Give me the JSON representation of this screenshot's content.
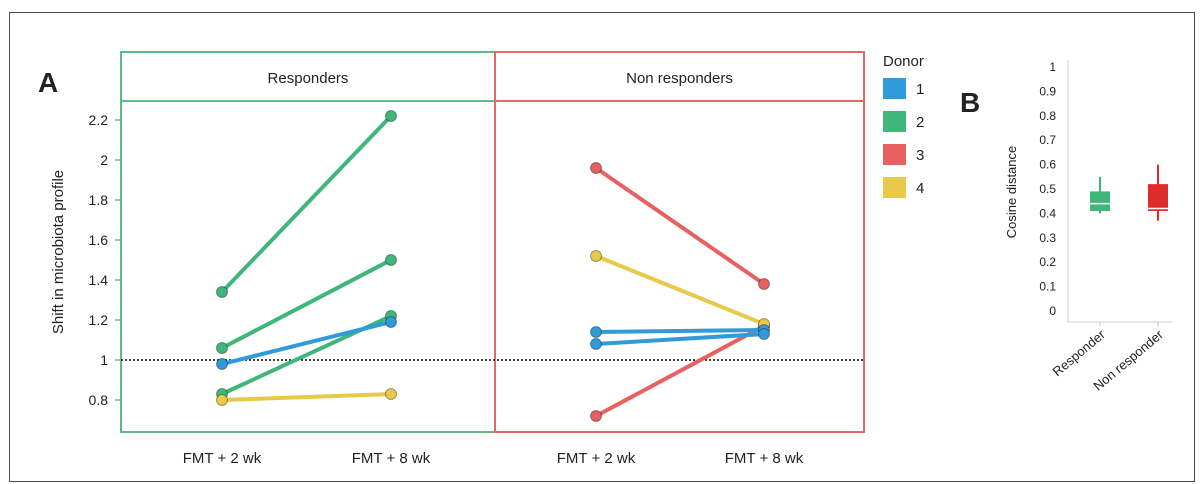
{
  "panel_labels": {
    "a": "A",
    "b": "B"
  },
  "colors": {
    "responder_frame": "#5dbb84",
    "nonresponder_frame": "#e06a6a",
    "reference_line": "#000000"
  },
  "chart_data": [
    {
      "type": "line",
      "panel": "A",
      "ylabel": "Shift in microbiota profile",
      "ylim": [
        0.65,
        2.3
      ],
      "yticks": [
        "0.8",
        "1",
        "1.2",
        "1.4",
        "1.6",
        "1.8",
        "2",
        "2.2"
      ],
      "reference_line": 1,
      "categories": [
        "FMT + 2 wk",
        "FMT + 8 wk"
      ],
      "facets": [
        "Responders",
        "Non responders"
      ],
      "legend": {
        "title": "Donor",
        "entries": [
          {
            "label": "1",
            "color": "#2f9bd8"
          },
          {
            "label": "2",
            "color": "#3fb67a"
          },
          {
            "label": "3",
            "color": "#e86060"
          },
          {
            "label": "4",
            "color": "#e8c94a"
          }
        ]
      },
      "series": [
        {
          "facet": "Responders",
          "donor": "2",
          "values": [
            1.34,
            2.22
          ]
        },
        {
          "facet": "Responders",
          "donor": "2",
          "values": [
            1.06,
            1.5
          ]
        },
        {
          "facet": "Responders",
          "donor": "2",
          "values": [
            0.83,
            1.22
          ]
        },
        {
          "facet": "Responders",
          "donor": "1",
          "values": [
            0.98,
            1.19
          ]
        },
        {
          "facet": "Responders",
          "donor": "4",
          "values": [
            0.8,
            0.83
          ]
        },
        {
          "facet": "Non responders",
          "donor": "3",
          "values": [
            1.96,
            1.38
          ]
        },
        {
          "facet": "Non responders",
          "donor": "3",
          "values": [
            0.72,
            1.17
          ]
        },
        {
          "facet": "Non responders",
          "donor": "4",
          "values": [
            1.52,
            1.18
          ]
        },
        {
          "facet": "Non responders",
          "donor": "1",
          "values": [
            1.14,
            1.15
          ]
        },
        {
          "facet": "Non responders",
          "donor": "1",
          "values": [
            1.08,
            1.13
          ]
        }
      ]
    },
    {
      "type": "box",
      "panel": "B",
      "ylabel": "Cosine distance",
      "ylim": [
        0,
        1
      ],
      "yticks": [
        "0",
        "0.1",
        "0.2",
        "0.3",
        "0.4",
        "0.5",
        "0.6",
        "0.7",
        "0.8",
        "0.9",
        "1"
      ],
      "categories": [
        "Responder",
        "Non responder"
      ],
      "boxes": [
        {
          "label": "Responder",
          "color": "#3fb67a",
          "min": 0.4,
          "q1": 0.41,
          "median": 0.44,
          "q3": 0.49,
          "max": 0.55
        },
        {
          "label": "Non responder",
          "color": "#e02b2b",
          "min": 0.37,
          "q1": 0.41,
          "median": 0.42,
          "q3": 0.52,
          "max": 0.6
        }
      ]
    }
  ]
}
